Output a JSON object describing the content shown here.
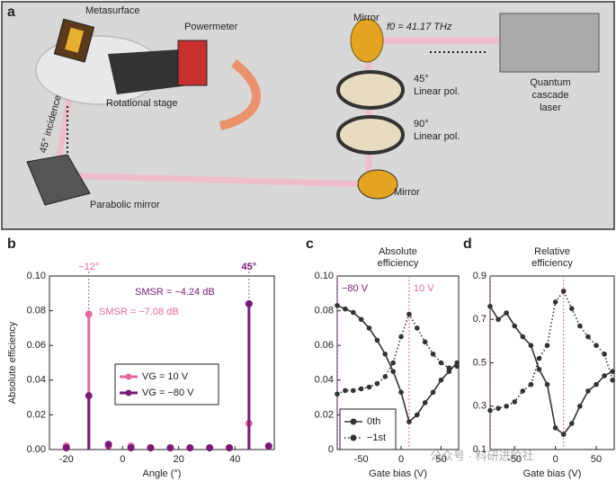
{
  "panel_a": {
    "label": "a",
    "metasurface": "Metasurface",
    "powermeter": "Powermeter",
    "rotational_stage": "Rotational stage",
    "incidence": "45° incidence",
    "parabolic_mirror": "Parabolic mirror",
    "mirror_top": "Mirror",
    "frequency": "f0 = 41.17 THz",
    "pol45": [
      "45°",
      "Linear pol."
    ],
    "pol90": [
      "90°",
      "Linear pol."
    ],
    "laser": [
      "Quantum",
      "cascade",
      "laser"
    ],
    "mirror_bottom": "Mirror"
  },
  "watermark": "公众号 · 科研进阶社",
  "chart_data": [
    {
      "type": "stem",
      "panel_label": "b",
      "xlabel": "Angle (°)",
      "ylabel": "Absolute efficiency",
      "x": [
        -20,
        -12,
        -5,
        3,
        10,
        17,
        24,
        31,
        38,
        45,
        52
      ],
      "series": [
        {
          "name": "VG = 10 V",
          "color": "#e8679f",
          "values": [
            0.002,
            0.078,
            0.002,
            0.002,
            0.001,
            0.001,
            0.001,
            0.001,
            0.001,
            0.015,
            0.002
          ]
        },
        {
          "name": "VG = −80 V",
          "color": "#7a1a78",
          "values": [
            0.001,
            0.031,
            0.003,
            0.001,
            0.001,
            0.001,
            0.001,
            0.001,
            0.001,
            0.084,
            0.002
          ]
        }
      ],
      "vlines": [
        {
          "x": -12,
          "label": "−12°",
          "color": "#e8679f"
        },
        {
          "x": 45,
          "label": "45°",
          "color": "#7a1a78"
        }
      ],
      "annotations": [
        {
          "text": "SMSR = −4.24 dB",
          "color": "#7a1a78"
        },
        {
          "text": "SMSR = −7.08 dB",
          "color": "#e8679f"
        }
      ],
      "xlim": [
        -26,
        54
      ],
      "ylim": [
        0,
        0.1
      ],
      "xticks": [
        -20,
        0,
        20,
        40
      ],
      "yticks": [
        {
          "value": 0,
          "label": "0.00"
        },
        {
          "value": 0.02,
          "label": "0.02"
        },
        {
          "value": 0.04,
          "label": "0.04"
        },
        {
          "value": 0.06,
          "label": "0.06"
        },
        {
          "value": 0.08,
          "label": "0.08"
        },
        {
          "value": 0.1,
          "label": "0.10"
        }
      ]
    },
    {
      "type": "line",
      "panel_label": "c",
      "title": [
        "Absolute",
        "efficiency"
      ],
      "xlabel": "Gate bias (V)",
      "x": [
        -80,
        -70,
        -60,
        -50,
        -40,
        -30,
        -20,
        -10,
        0,
        10,
        20,
        30,
        40,
        50,
        60,
        70
      ],
      "series": [
        {
          "name": "0th",
          "color": "#333333",
          "style": "solid",
          "values": [
            0.083,
            0.081,
            0.079,
            0.075,
            0.07,
            0.063,
            0.055,
            0.045,
            0.033,
            0.016,
            0.02,
            0.027,
            0.033,
            0.04,
            0.045,
            0.05
          ]
        },
        {
          "name": "−1st",
          "color": "#333333",
          "style": "dotted",
          "values": [
            0.032,
            0.034,
            0.034,
            0.035,
            0.036,
            0.038,
            0.042,
            0.05,
            0.065,
            0.078,
            0.07,
            0.062,
            0.055,
            0.05,
            0.047,
            0.048
          ]
        }
      ],
      "vlines": [
        {
          "x": -80,
          "label": "−80 V",
          "color": "#7a1a78"
        },
        {
          "x": 10,
          "label": "10 V",
          "color": "#e8679f"
        }
      ],
      "xlim": [
        -80,
        72
      ],
      "ylim": [
        0,
        0.1
      ],
      "xticks": [
        -50,
        0,
        50
      ],
      "yticks": [
        0,
        {
          "value": 0.02,
          "label": "0.02"
        },
        {
          "value": 0.04,
          "label": "0.04"
        },
        {
          "value": 0.06,
          "label": "0.06"
        },
        {
          "value": 0.08,
          "label": "0.08"
        },
        {
          "value": 0.1,
          "label": "0.10"
        }
      ]
    },
    {
      "type": "line",
      "panel_label": "d",
      "title": [
        "Relative",
        "efficiency"
      ],
      "xlabel": "Gate bias (V)",
      "x": [
        -80,
        -70,
        -60,
        -50,
        -40,
        -30,
        -20,
        -10,
        0,
        10,
        20,
        30,
        40,
        50,
        60,
        70
      ],
      "series": [
        {
          "name": "0th",
          "color": "#333333",
          "style": "solid",
          "values": [
            0.76,
            0.7,
            0.73,
            0.67,
            0.62,
            0.58,
            0.47,
            0.4,
            0.2,
            0.17,
            0.22,
            0.3,
            0.37,
            0.4,
            0.44,
            0.46
          ]
        },
        {
          "name": "−1st",
          "color": "#333333",
          "style": "dotted",
          "values": [
            0.28,
            0.29,
            0.3,
            0.32,
            0.37,
            0.4,
            0.52,
            0.58,
            0.78,
            0.83,
            0.75,
            0.67,
            0.62,
            0.58,
            0.54,
            0.42
          ]
        }
      ],
      "vlines": [
        {
          "x": -80,
          "color": "#7a1a78"
        },
        {
          "x": 10,
          "color": "#e8679f"
        }
      ],
      "xlim": [
        -80,
        72
      ],
      "ylim": [
        0.1,
        0.9
      ],
      "xticks": [
        -50,
        0,
        50
      ],
      "yticks": [
        0.1,
        0.3,
        0.5,
        0.7,
        0.9
      ]
    }
  ]
}
